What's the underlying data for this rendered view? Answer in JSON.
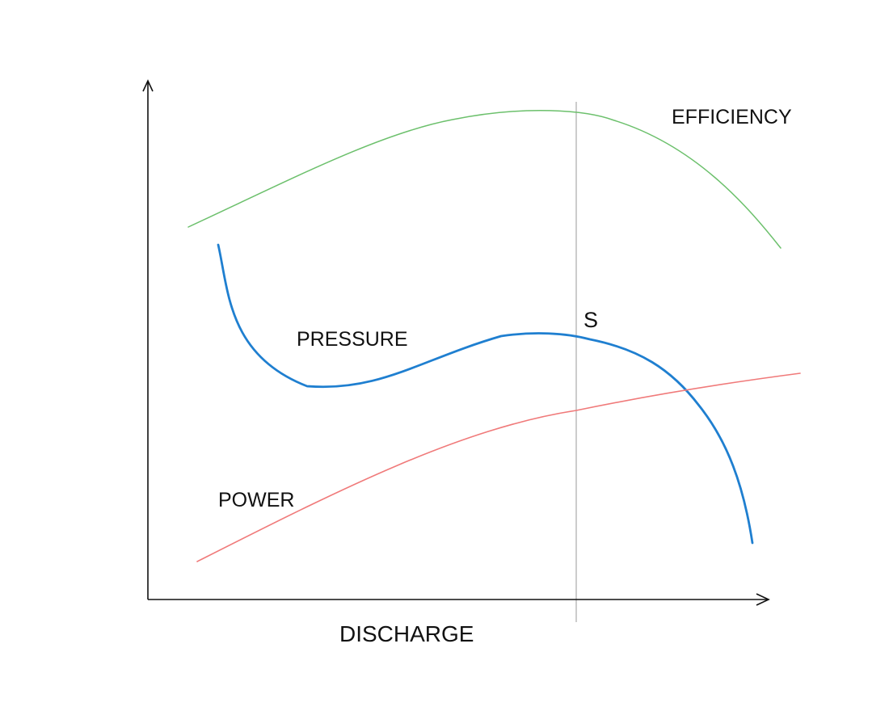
{
  "diagram": {
    "x_axis_label": "DISCHARGE",
    "point_label": "S",
    "curves": [
      {
        "key": "efficiency",
        "label": "EFFICIENCY",
        "color": "#6cc06c"
      },
      {
        "key": "pressure",
        "label": "PRESSURE",
        "color": "#1f7fd0"
      },
      {
        "key": "power",
        "label": "POWER",
        "color": "#f07a7a"
      }
    ],
    "colors": {
      "axes": "#111111",
      "marker_line": "#aaaaaa",
      "text": "#111111"
    }
  }
}
